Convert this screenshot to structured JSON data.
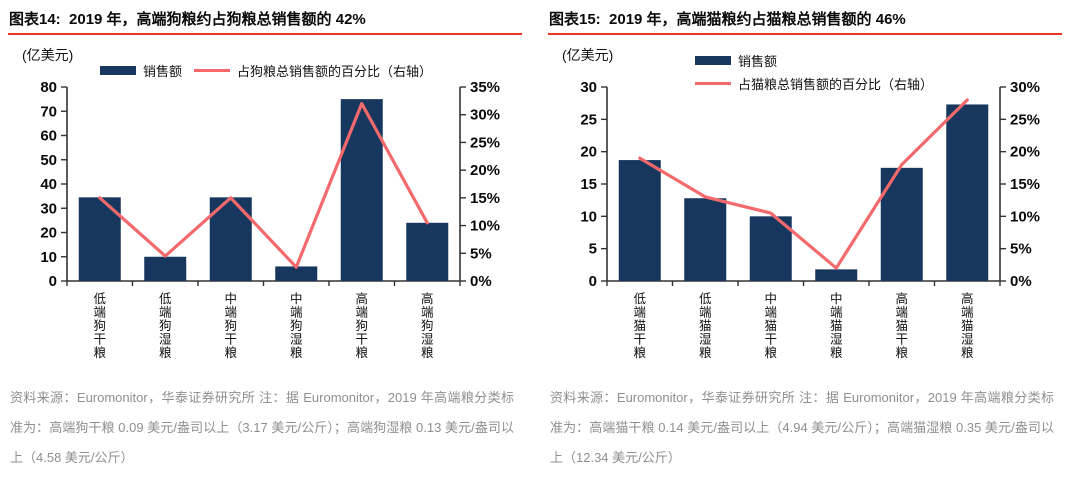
{
  "colors": {
    "bar": "#17375e",
    "line": "#f4696c",
    "title_rule": "#ee3320",
    "axis": "#333333",
    "footnote": "#8f8f8f"
  },
  "charts": [
    {
      "title": "图表14:  2019 年，高端狗粮约占狗粮总销售额的 42%",
      "unit_label": "(亿美元)",
      "legend": {
        "layout": "row",
        "items": [
          {
            "swatch": "bar",
            "label": "销售额"
          },
          {
            "swatch": "line",
            "label": "占狗粮总销售额的百分比（右轴）"
          }
        ]
      },
      "chart_data": {
        "type": "bar+line",
        "categories": [
          "低端狗干粮",
          "低端狗湿粮",
          "中端狗干粮",
          "中端狗湿粮",
          "高端狗干粮",
          "高端狗湿粮"
        ],
        "series": [
          {
            "name": "销售额",
            "type": "bar",
            "axis": "left",
            "values": [
              34.5,
              10,
              34.5,
              6,
              75,
              24
            ]
          },
          {
            "name": "占狗粮总销售额的百分比（右轴）",
            "type": "line",
            "axis": "right",
            "values": [
              15,
              4.5,
              15,
              2.5,
              32,
              10.5
            ]
          }
        ],
        "left_axis": {
          "min": 0,
          "max": 80,
          "step": 10,
          "suffix": ""
        },
        "right_axis": {
          "min": 0,
          "max": 35,
          "step": 5,
          "suffix": "%"
        },
        "grid": false,
        "legend_position": "top"
      },
      "footnote": "资料来源：Euromonitor，华泰证券研究所 注：据 Euromonitor，2019 年高端粮分类标准为：高端狗干粮 0.09 美元/盎司以上（3.17 美元/公斤）；高端狗湿粮 0.13 美元/盎司以上（4.58 美元/公斤）"
    },
    {
      "title": "图表15:  2019 年，高端猫粮约占猫粮总销售额的 46%",
      "unit_label": "(亿美元)",
      "legend": {
        "layout": "column",
        "items": [
          {
            "swatch": "bar",
            "label": "销售额"
          },
          {
            "swatch": "line",
            "label": "占猫粮总销售额的百分比（右轴）"
          }
        ]
      },
      "chart_data": {
        "type": "bar+line",
        "categories": [
          "低端猫干粮",
          "低端猫湿粮",
          "中端猫干粮",
          "中端猫湿粮",
          "高端猫干粮",
          "高端猫湿粮"
        ],
        "series": [
          {
            "name": "销售额",
            "type": "bar",
            "axis": "left",
            "values": [
              18.7,
              12.8,
              10,
              1.8,
              17.5,
              27.3
            ]
          },
          {
            "name": "占猫粮总销售额的百分比（右轴）",
            "type": "line",
            "axis": "right",
            "values": [
              19,
              13,
              10.5,
              2,
              18,
              28
            ]
          }
        ],
        "left_axis": {
          "min": 0,
          "max": 30,
          "step": 5,
          "suffix": ""
        },
        "right_axis": {
          "min": 0,
          "max": 30,
          "step": 5,
          "suffix": "%"
        },
        "grid": false,
        "legend_position": "top"
      },
      "footnote": "资料来源：Euromonitor，华泰证券研究所 注：据 Euromonitor，2019 年高端粮分类标准为：高端猫干粮 0.14 美元/盎司以上（4.94 美元/公斤）；高端猫湿粮 0.35 美元/盎司以上（12.34 美元/公斤）"
    }
  ]
}
